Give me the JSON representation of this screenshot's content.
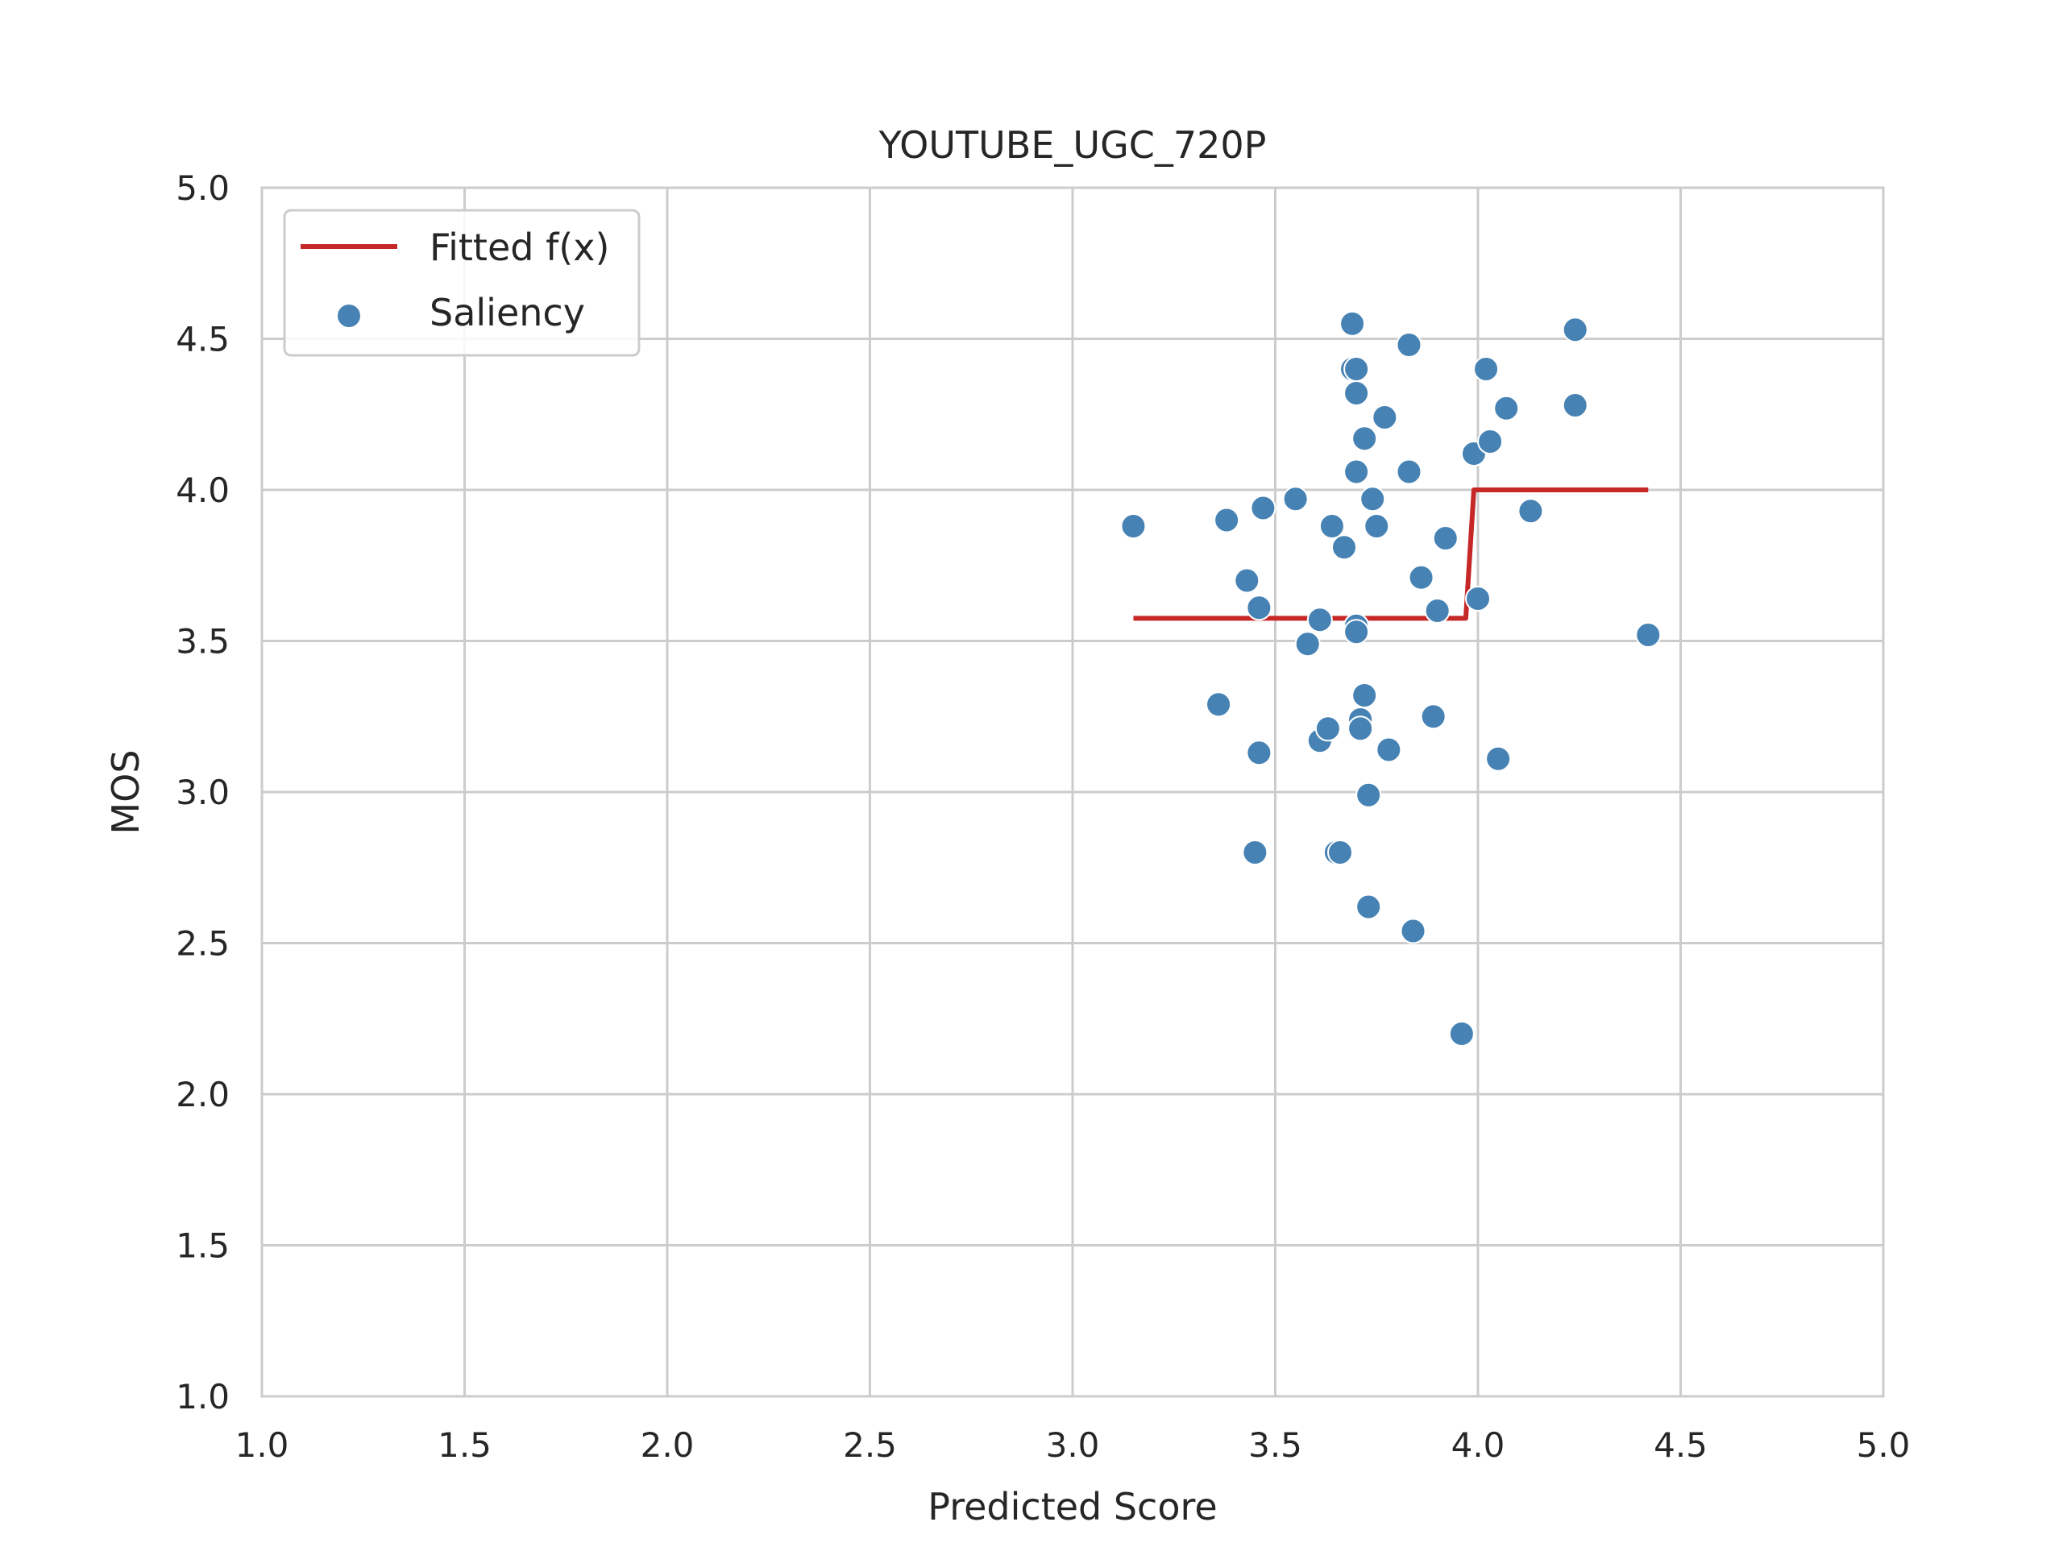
{
  "chart_data": {
    "type": "scatter",
    "title": "YOUTUBE_UGC_720P",
    "xlabel": "Predicted Score",
    "ylabel": "MOS",
    "xlim": [
      1.0,
      5.0
    ],
    "ylim": [
      1.0,
      5.0
    ],
    "xticks": [
      "1.0",
      "1.5",
      "2.0",
      "2.5",
      "3.0",
      "3.5",
      "4.0",
      "4.5",
      "5.0"
    ],
    "yticks": [
      "1.0",
      "1.5",
      "2.0",
      "2.5",
      "3.0",
      "3.5",
      "4.0",
      "4.5",
      "5.0"
    ],
    "grid": true,
    "legend": {
      "position": "top-left",
      "entries": [
        {
          "label": "Fitted f(x)",
          "kind": "line",
          "color": "#c62828"
        },
        {
          "label": "Saliency",
          "kind": "marker",
          "color": "#4682b4"
        }
      ]
    },
    "series": [
      {
        "name": "Saliency",
        "kind": "scatter",
        "color": "#4682b4",
        "points": [
          [
            3.15,
            3.88
          ],
          [
            3.36,
            3.29
          ],
          [
            3.38,
            3.9
          ],
          [
            3.43,
            3.7
          ],
          [
            3.45,
            2.8
          ],
          [
            3.46,
            3.61
          ],
          [
            3.46,
            3.13
          ],
          [
            3.47,
            3.94
          ],
          [
            3.55,
            3.97
          ],
          [
            3.58,
            3.49
          ],
          [
            3.61,
            3.57
          ],
          [
            3.61,
            3.17
          ],
          [
            3.63,
            3.21
          ],
          [
            3.64,
            3.88
          ],
          [
            3.65,
            2.8
          ],
          [
            3.66,
            2.8
          ],
          [
            3.67,
            3.81
          ],
          [
            3.69,
            4.55
          ],
          [
            3.69,
            4.4
          ],
          [
            3.7,
            4.4
          ],
          [
            3.7,
            4.32
          ],
          [
            3.7,
            4.06
          ],
          [
            3.7,
            3.55
          ],
          [
            3.7,
            3.53
          ],
          [
            3.71,
            3.24
          ],
          [
            3.71,
            3.21
          ],
          [
            3.72,
            4.17
          ],
          [
            3.72,
            3.32
          ],
          [
            3.73,
            2.99
          ],
          [
            3.73,
            2.62
          ],
          [
            3.74,
            3.97
          ],
          [
            3.75,
            3.88
          ],
          [
            3.77,
            4.24
          ],
          [
            3.78,
            3.14
          ],
          [
            3.83,
            4.48
          ],
          [
            3.83,
            4.06
          ],
          [
            3.84,
            2.54
          ],
          [
            3.86,
            3.71
          ],
          [
            3.89,
            3.25
          ],
          [
            3.9,
            3.6
          ],
          [
            3.92,
            3.84
          ],
          [
            3.96,
            2.2
          ],
          [
            3.99,
            4.12
          ],
          [
            4.0,
            3.64
          ],
          [
            4.02,
            4.4
          ],
          [
            4.03,
            4.16
          ],
          [
            4.05,
            3.11
          ],
          [
            4.07,
            4.27
          ],
          [
            4.13,
            3.93
          ],
          [
            4.24,
            4.28
          ],
          [
            4.24,
            4.53
          ],
          [
            4.42,
            3.52
          ]
        ]
      },
      {
        "name": "Fitted f(x)",
        "kind": "line",
        "color": "#c62828",
        "points": [
          [
            3.15,
            3.575
          ],
          [
            3.97,
            3.575
          ],
          [
            3.99,
            4.0
          ],
          [
            4.42,
            4.0
          ]
        ]
      }
    ]
  }
}
